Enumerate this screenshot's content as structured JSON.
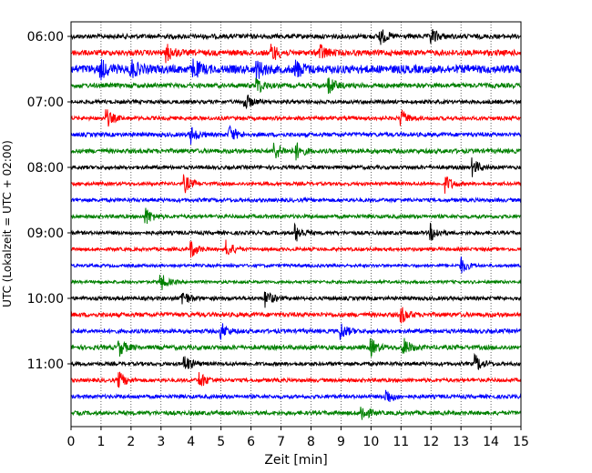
{
  "chart_data": {
    "type": "line",
    "title": "",
    "xlabel": "Zeit  [min]",
    "ylabel": "UTC (Lokalzeit = UTC + 02:00)",
    "xlim": [
      0,
      15
    ],
    "x_ticks": [
      "0",
      "1",
      "2",
      "3",
      "4",
      "5",
      "6",
      "7",
      "8",
      "9",
      "10",
      "11",
      "12",
      "13",
      "14",
      "15"
    ],
    "y_ticks": [
      "06:00",
      "07:00",
      "08:00",
      "09:00",
      "10:00",
      "11:00"
    ],
    "grid": "vertical dotted at each minute",
    "legend": "none",
    "color_cycle": [
      "#000000",
      "#ff0000",
      "#0000ff",
      "#008000"
    ],
    "trace_interval_min": 15,
    "trace_count": 24,
    "first_trace": "06:00",
    "last_trace": "11:45"
  }
}
